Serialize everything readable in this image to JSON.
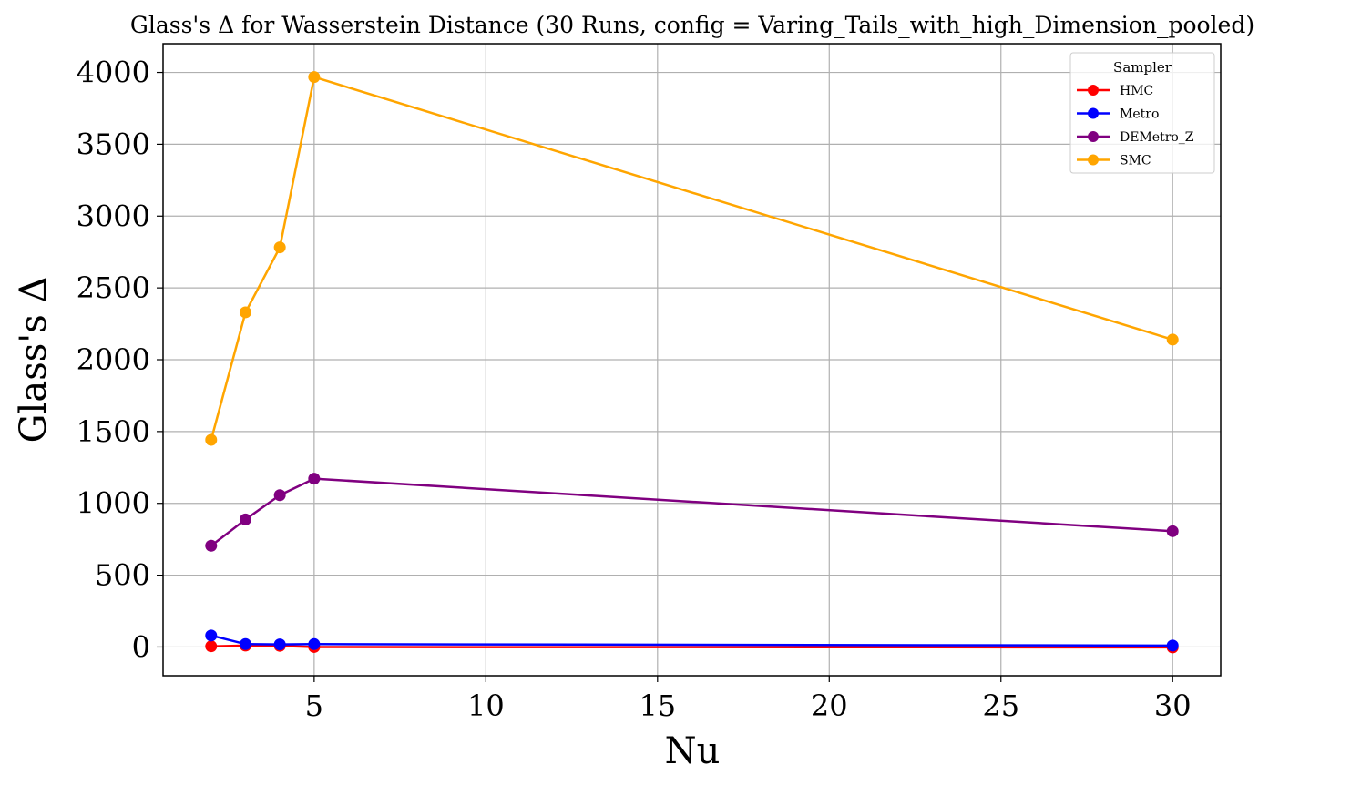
{
  "chart_data": {
    "type": "line",
    "title": "Glass's Δ for Wasserstein Distance (30 Runs, config = Varing_Tails_with_high_Dimension_pooled)",
    "xlabel": "Nu",
    "ylabel": "Glass's Δ",
    "x": [
      2,
      3,
      4,
      5,
      30
    ],
    "xlim": [
      0.6,
      31.4
    ],
    "ylim": [
      -200,
      4200
    ],
    "xticks": [
      5,
      10,
      15,
      20,
      25,
      30
    ],
    "yticks": [
      0,
      500,
      1000,
      1500,
      2000,
      2500,
      3000,
      3500,
      4000
    ],
    "grid": true,
    "legend": {
      "title": "Sampler",
      "placement": "upper right"
    },
    "series": [
      {
        "name": "HMC",
        "color": "#ff0000",
        "values": [
          5,
          10,
          8,
          0,
          -3
        ]
      },
      {
        "name": "Metro",
        "color": "#0000ff",
        "values": [
          80,
          20,
          18,
          20,
          10
        ]
      },
      {
        "name": "DEMetro_Z",
        "color": "#800080",
        "values": [
          705,
          888,
          1057,
          1172,
          806
        ]
      },
      {
        "name": "SMC",
        "color": "#ffa500",
        "values": [
          1442,
          2330,
          2782,
          3968,
          2140
        ]
      }
    ]
  }
}
